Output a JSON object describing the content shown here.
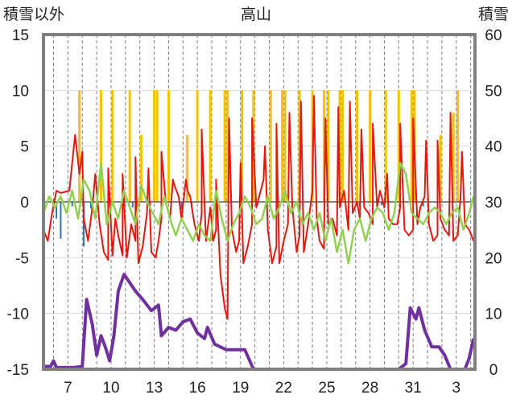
{
  "chart_data": {
    "type": "line",
    "title": "高山",
    "ylabel_left": "積雪以外",
    "ylabel_right": "積雪",
    "ylim_left": [
      -15,
      15
    ],
    "ylim_right": [
      0,
      60
    ],
    "y_ticks_left": [
      "15",
      "10",
      "5",
      "0",
      "-5",
      "-10",
      "-15"
    ],
    "y_ticks_right": [
      "60",
      "50",
      "40",
      "30",
      "20",
      "10",
      "0"
    ],
    "x_tick_labels": [
      "7",
      "10",
      "13",
      "16",
      "19",
      "22",
      "25",
      "28",
      "31",
      "3"
    ],
    "x_tick_days": [
      7,
      10,
      13,
      16,
      19,
      22,
      25,
      28,
      31,
      34
    ],
    "x_range_days": [
      5.3,
      35.3
    ],
    "grid": true,
    "colors": {
      "temperature": "#e8160c",
      "snowfall": "#ffc000",
      "precipitation": "#2e75b6",
      "temp_anomaly": "#92d050",
      "snow_depth": "#7030a0",
      "frame": "#808080",
      "grid": "#7f7f7f"
    },
    "series": [
      {
        "key": "temperature",
        "axis": "left",
        "x": [
          5.3,
          5.6,
          5.9,
          6.2,
          6.5,
          6.8,
          7.1,
          7.3,
          7.5,
          7.8,
          8.1,
          8.4,
          8.7,
          8.9,
          9.2,
          9.5,
          9.8,
          10.1,
          10.3,
          10.5,
          10.8,
          11.1,
          11.4,
          11.7,
          11.9,
          12.2,
          12.5,
          12.8,
          13.1,
          13.3,
          13.5,
          13.8,
          14.1,
          14.4,
          14.7,
          14.9,
          15.2,
          15.5,
          15.8,
          16.1,
          16.3,
          16.6,
          16.9,
          17.1,
          17.3,
          17.6,
          17.9,
          18.1,
          18.4,
          18.7,
          18.9,
          19.2,
          19.5,
          19.8,
          20.1,
          20.3,
          20.6,
          20.9,
          21.2,
          21.5,
          21.7,
          22.0,
          22.3,
          22.6,
          22.9,
          23.1,
          23.4,
          23.7,
          24.0,
          24.3,
          24.5,
          24.8,
          25.1,
          25.4,
          25.7,
          25.9,
          26.2,
          26.5,
          26.8,
          27.1,
          27.3,
          27.6,
          27.9,
          28.2,
          28.5,
          28.7,
          29.0,
          29.3,
          29.6,
          29.9,
          30.1,
          30.4,
          30.7,
          31.0,
          31.3,
          31.5,
          31.8,
          32.1,
          32.4,
          32.7,
          32.9,
          33.2,
          33.5,
          33.8,
          34.1,
          34.3,
          34.6,
          34.9,
          35.2
        ],
        "values": [
          -2.5,
          -3.5,
          -1.0,
          1.0,
          0.8,
          0.9,
          1.0,
          3.5,
          6.0,
          2.5,
          -1.5,
          -3.5,
          -0.5,
          2.5,
          -2.0,
          -4.5,
          -5.2,
          -4.8,
          -1.5,
          -3.0,
          -4.8,
          -5.0,
          -2.0,
          -3.5,
          -5.5,
          -4.0,
          -1.0,
          -4.5,
          -5.0,
          -3.5,
          -1.5,
          0.0,
          -1.5,
          1.5,
          0.5,
          -1.5,
          2.0,
          0.5,
          -2.0,
          -3.5,
          -1.0,
          -3.5,
          -0.5,
          -3.5,
          -2.5,
          -6.5,
          -9.5,
          -10.5,
          -2.5,
          -4.5,
          -3.5,
          -5.5,
          -4.0,
          -2.0,
          -0.5,
          0.5,
          2.0,
          -2.5,
          -5.5,
          -4.0,
          -5.5,
          -3.5,
          -2.0,
          -0.5,
          -4.5,
          -3.0,
          -4.5,
          -2.0,
          1.0,
          -1.5,
          -3.5,
          -4.2,
          -2.0,
          -1.5,
          -3.0,
          -0.5,
          1.0,
          -2.5,
          -1.0,
          0.0,
          -1.5,
          -0.5,
          -1.0,
          -2.0,
          -0.5,
          1.0,
          -0.5,
          -1.5,
          -2.0,
          -2.0,
          -0.5,
          -2.5,
          -3.0,
          -2.5,
          -2.0,
          -0.5,
          0.5,
          -2.0,
          -3.5,
          -3.0,
          -1.5,
          -2.5,
          -3.0,
          -3.5,
          -3.0,
          0.5,
          -2.0,
          -2.5,
          -3.5
        ]
      },
      {
        "key": "temp_peaks",
        "axis": "left",
        "peak_days": [
          8.0,
          9.8,
          10.8,
          11.7,
          12.6,
          13.5,
          14.3,
          15.3,
          16.3,
          17.3,
          18.2,
          19.0,
          19.8,
          20.7,
          21.5,
          22.4,
          23.2,
          24.1,
          24.9,
          25.8,
          26.6,
          27.4,
          28.2,
          29.2,
          30.1,
          31.0,
          31.9,
          32.7,
          33.6,
          34.4
        ],
        "peak_values": [
          4.5,
          3.0,
          2.5,
          4.0,
          3.0,
          4.5,
          2.0,
          1.0,
          6.5,
          2.0,
          7.5,
          3.5,
          7.5,
          5.0,
          7.0,
          8.0,
          9.0,
          9.5,
          7.5,
          8.5,
          9.0,
          6.5,
          7.0,
          2.5,
          7.0,
          7.5,
          5.5,
          5.5,
          8.0,
          4.5
        ]
      },
      {
        "key": "snowfall",
        "axis": "left",
        "bar_days": [
          7.8,
          9.3,
          10.1,
          11.3,
          12.1,
          13.0,
          13.2,
          14.0,
          15.3,
          16.0,
          16.9,
          17.9,
          18.1,
          19.1,
          19.9,
          21.1,
          21.9,
          22.1,
          23.1,
          24.0,
          24.8,
          25.1,
          25.9,
          26.1,
          27.1,
          28.0,
          29.1,
          30.0,
          30.9,
          31.1,
          32.9,
          33.8,
          34.1
        ],
        "bar_values": [
          10,
          10,
          10,
          10,
          6,
          10,
          10,
          10,
          6,
          10,
          10,
          10,
          10,
          10,
          10,
          10,
          10,
          10,
          10,
          10,
          10,
          10,
          10,
          10,
          10,
          10,
          10,
          10,
          10,
          10,
          6,
          8,
          10
        ]
      },
      {
        "key": "precipitation",
        "axis": "left",
        "bar_days": [
          6.2,
          6.5,
          7.3,
          8.1,
          8.6,
          11.5,
          11.9,
          14.9,
          15.6,
          20.2,
          22.6,
          27.3,
          28.8,
          31.7
        ],
        "bar_values": [
          -1.5,
          -3.3,
          -0.4,
          -4.0,
          -0.6,
          -0.5,
          -0.4,
          -0.7,
          -0.5,
          -0.3,
          -0.3,
          -0.4,
          -0.3,
          -0.4
        ]
      },
      {
        "key": "temp_anomaly",
        "axis": "left",
        "x": [
          5.3,
          5.7,
          6.1,
          6.5,
          6.9,
          7.3,
          7.7,
          8.1,
          8.5,
          8.9,
          9.3,
          9.7,
          10.1,
          10.5,
          10.9,
          11.3,
          11.7,
          12.1,
          12.5,
          12.9,
          13.3,
          13.7,
          14.1,
          14.5,
          14.9,
          15.3,
          15.7,
          16.1,
          16.5,
          16.9,
          17.3,
          17.7,
          18.1,
          18.5,
          18.9,
          19.3,
          19.7,
          20.1,
          20.5,
          20.9,
          21.3,
          21.7,
          22.1,
          22.5,
          22.9,
          23.3,
          23.7,
          24.1,
          24.5,
          24.9,
          25.3,
          25.7,
          26.1,
          26.5,
          26.9,
          27.3,
          27.7,
          28.1,
          28.5,
          28.9,
          29.3,
          29.7,
          30.1,
          30.5,
          30.9,
          31.3,
          31.7,
          32.1,
          32.5,
          32.9,
          33.3,
          33.7,
          34.1,
          34.5,
          34.9,
          35.2
        ],
        "values": [
          -1.0,
          0.5,
          -0.5,
          0.5,
          -1.0,
          1.0,
          -1.5,
          2.0,
          1.0,
          -1.5,
          3.5,
          -2.0,
          0.0,
          -1.5,
          1.0,
          -0.5,
          -2.0,
          1.5,
          0.0,
          -1.0,
          -2.0,
          0.5,
          -1.5,
          -3.0,
          -1.5,
          -2.5,
          -3.5,
          -2.0,
          -3.0,
          -3.5,
          1.0,
          -1.5,
          -3.5,
          -2.0,
          -1.0,
          0.5,
          -0.5,
          -2.0,
          -1.5,
          0.5,
          -1.5,
          -0.5,
          1.0,
          -1.0,
          0.0,
          -2.0,
          -1.0,
          -2.5,
          -1.0,
          -3.5,
          -1.5,
          -4.5,
          -2.5,
          -5.5,
          -2.5,
          -1.5,
          -3.5,
          -1.5,
          -0.5,
          -1.0,
          -2.5,
          -1.0,
          3.5,
          2.5,
          -1.0,
          -1.5,
          -2.0,
          -1.0,
          -0.5,
          -1.0,
          -2.0,
          -1.0,
          -0.5,
          -2.5,
          -1.0,
          0.5
        ]
      },
      {
        "key": "snow_depth",
        "axis": "right",
        "x": [
          5.3,
          5.8,
          6.0,
          6.2,
          7.4,
          8.0,
          8.3,
          8.7,
          9.0,
          9.3,
          9.6,
          9.9,
          10.2,
          10.5,
          10.9,
          11.3,
          11.7,
          12.2,
          12.8,
          13.3,
          13.5,
          14.0,
          14.5,
          15.0,
          15.5,
          16.0,
          16.5,
          16.7,
          17.2,
          17.6,
          18.0,
          18.6,
          19.3,
          19.9,
          20.5,
          21.5,
          22.5,
          23.5,
          24.5,
          25.5,
          26.5,
          27.5,
          28.5,
          29.5,
          30.0,
          30.5,
          30.8,
          31.2,
          31.4,
          31.8,
          32.3,
          32.8,
          33.2,
          33.6,
          34.0,
          34.3,
          34.6,
          34.9,
          35.2
        ],
        "values": [
          0.5,
          0.5,
          1.5,
          0.3,
          0.3,
          0.5,
          12.5,
          8.0,
          2.5,
          6.0,
          4.0,
          1.5,
          6.0,
          14.0,
          17.0,
          15.5,
          14.0,
          12.5,
          10.5,
          11.5,
          6.0,
          7.5,
          7.0,
          8.5,
          9.0,
          6.5,
          5.5,
          7.5,
          4.5,
          4.0,
          3.5,
          3.5,
          3.5,
          0.0,
          0.0,
          0.0,
          0.0,
          0.0,
          0.0,
          0.0,
          0.0,
          0.0,
          0.0,
          0.0,
          0.0,
          1.0,
          11.0,
          9.0,
          11.0,
          7.0,
          4.0,
          4.0,
          2.5,
          0.0,
          0.0,
          0.0,
          0.0,
          2.0,
          5.5
        ]
      }
    ]
  }
}
